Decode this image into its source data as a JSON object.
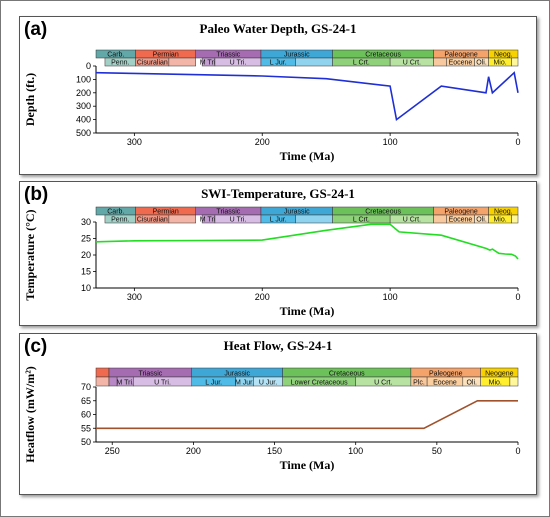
{
  "chart_data": [
    {
      "type": "line",
      "panel_label": "(a)",
      "title": "Paleo Water Depth, GS-24-1",
      "xlabel": "Time (Ma)",
      "ylabel": "Depth (ft.)",
      "xlim": [
        330,
        0
      ],
      "ylim": [
        0,
        500
      ],
      "y_inverted": true,
      "xticks": [
        "300",
        "200",
        "100",
        "0"
      ],
      "yticks": [
        "0",
        "100",
        "200",
        "300",
        "400",
        "500"
      ],
      "grid": false,
      "series": [
        {
          "color": "#1f2fd6",
          "x": [
            330,
            300,
            250,
            200,
            150,
            100,
            95,
            60,
            25,
            23,
            20,
            3,
            0
          ],
          "y": [
            50,
            55,
            65,
            75,
            95,
            150,
            400,
            150,
            200,
            80,
            200,
            50,
            200
          ]
        }
      ],
      "strat_top": [
        {
          "label": "Carb.",
          "from": 330,
          "to": 299,
          "color": "#62a8a8"
        },
        {
          "label": "Permian",
          "from": 299,
          "to": 252,
          "color": "#ef6a4f"
        },
        {
          "label": "Triassic",
          "from": 252,
          "to": 201,
          "color": "#a56cb2"
        },
        {
          "label": "Jurassic",
          "from": 201,
          "to": 145,
          "color": "#3fa7d6"
        },
        {
          "label": "Cretaceous",
          "from": 145,
          "to": 66,
          "color": "#6cc15a"
        },
        {
          "label": "Paleogene",
          "from": 66,
          "to": 23,
          "color": "#f4a36b"
        },
        {
          "label": "Neog.",
          "from": 23,
          "to": 0,
          "color": "#f7d200"
        }
      ],
      "strat_bottom": [
        {
          "label": "Penn.",
          "from": 323,
          "to": 299,
          "color": "#a2cfc6"
        },
        {
          "label": "Cisuralian",
          "from": 299,
          "to": 273,
          "color": "#ef9a88"
        },
        {
          "label": "",
          "from": 273,
          "to": 252,
          "color": "#f3b5a8"
        },
        {
          "label": "M Tri.",
          "from": 247,
          "to": 237,
          "color": "#c39fd1"
        },
        {
          "label": "U Tri.",
          "from": 237,
          "to": 201,
          "color": "#d7bde4"
        },
        {
          "label": "L Jur.",
          "from": 201,
          "to": 174,
          "color": "#4fbbe6"
        },
        {
          "label": "",
          "from": 174,
          "to": 145,
          "color": "#8fd3ef"
        },
        {
          "label": "L Crt.",
          "from": 145,
          "to": 100,
          "color": "#8fd07a"
        },
        {
          "label": "U Crt.",
          "from": 100,
          "to": 66,
          "color": "#b8e2a2"
        },
        {
          "label": "",
          "from": 66,
          "to": 56,
          "color": "#f8c89f"
        },
        {
          "label": "Eocene",
          "from": 56,
          "to": 34,
          "color": "#fbcf9f"
        },
        {
          "label": "Oli.",
          "from": 34,
          "to": 23,
          "color": "#fbe1bd"
        },
        {
          "label": "Mio.",
          "from": 23,
          "to": 5,
          "color": "#ffee30"
        },
        {
          "label": "",
          "from": 5,
          "to": 0,
          "color": "#fff79a"
        }
      ]
    },
    {
      "type": "line",
      "panel_label": "(b)",
      "title": "SWI-Temperature, GS-24-1",
      "xlabel": "Time (Ma)",
      "ylabel": "Temperature (°C)",
      "xlim": [
        330,
        0
      ],
      "ylim": [
        10,
        30
      ],
      "xticks": [
        "300",
        "200",
        "100",
        "0"
      ],
      "yticks": [
        "10",
        "15",
        "20",
        "25",
        "30"
      ],
      "grid": false,
      "series": [
        {
          "color": "#22dd22",
          "x": [
            330,
            300,
            250,
            200,
            150,
            115,
            100,
            93,
            60,
            25,
            22,
            20,
            15,
            10,
            5,
            2,
            0
          ],
          "y": [
            24,
            24.3,
            24.4,
            24.5,
            27.5,
            29.3,
            29.3,
            27,
            26,
            22,
            21.5,
            21.8,
            20.5,
            20.3,
            20.2,
            19.7,
            18.8
          ]
        }
      ],
      "strat_top": [
        {
          "label": "Carb.",
          "from": 330,
          "to": 299,
          "color": "#62a8a8"
        },
        {
          "label": "Permian",
          "from": 299,
          "to": 252,
          "color": "#ef6a4f"
        },
        {
          "label": "Triassic",
          "from": 252,
          "to": 201,
          "color": "#a56cb2"
        },
        {
          "label": "Jurassic",
          "from": 201,
          "to": 145,
          "color": "#3fa7d6"
        },
        {
          "label": "Cretaceous",
          "from": 145,
          "to": 66,
          "color": "#6cc15a"
        },
        {
          "label": "Paleogene",
          "from": 66,
          "to": 23,
          "color": "#f4a36b"
        },
        {
          "label": "Neog.",
          "from": 23,
          "to": 0,
          "color": "#f7d200"
        }
      ],
      "strat_bottom": [
        {
          "label": "Penn.",
          "from": 323,
          "to": 299,
          "color": "#a2cfc6"
        },
        {
          "label": "Cisuralian",
          "from": 299,
          "to": 273,
          "color": "#ef9a88"
        },
        {
          "label": "",
          "from": 273,
          "to": 252,
          "color": "#f3b5a8"
        },
        {
          "label": "M Tri.",
          "from": 247,
          "to": 237,
          "color": "#c39fd1"
        },
        {
          "label": "U Tri.",
          "from": 237,
          "to": 201,
          "color": "#d7bde4"
        },
        {
          "label": "L Jur.",
          "from": 201,
          "to": 174,
          "color": "#4fbbe6"
        },
        {
          "label": "",
          "from": 174,
          "to": 145,
          "color": "#8fd3ef"
        },
        {
          "label": "L Crt.",
          "from": 145,
          "to": 100,
          "color": "#8fd07a"
        },
        {
          "label": "U Crt.",
          "from": 100,
          "to": 66,
          "color": "#b8e2a2"
        },
        {
          "label": "",
          "from": 66,
          "to": 56,
          "color": "#f8c89f"
        },
        {
          "label": "Eocene",
          "from": 56,
          "to": 34,
          "color": "#fbcf9f"
        },
        {
          "label": "Oli.",
          "from": 34,
          "to": 23,
          "color": "#fbe1bd"
        },
        {
          "label": "Mio.",
          "from": 23,
          "to": 5,
          "color": "#ffee30"
        },
        {
          "label": "",
          "from": 5,
          "to": 0,
          "color": "#fff79a"
        }
      ]
    },
    {
      "type": "line",
      "panel_label": "(c)",
      "title": "Heat Flow, GS-24-1",
      "xlabel": "Time (Ma)",
      "ylabel": "Heatflow (mW/m²)",
      "xlim": [
        260,
        0
      ],
      "ylim": [
        50,
        70
      ],
      "xticks": [
        "250",
        "200",
        "150",
        "100",
        "50",
        "0"
      ],
      "yticks": [
        "50",
        "55",
        "60",
        "65",
        "70"
      ],
      "grid": false,
      "series": [
        {
          "color": "#a0522d",
          "x": [
            260,
            200,
            150,
            100,
            58,
            25,
            0
          ],
          "y": [
            55,
            55,
            55,
            55,
            55,
            65,
            65
          ]
        }
      ],
      "strat_top": [
        {
          "label": "",
          "from": 260,
          "to": 252,
          "color": "#ef6a4f"
        },
        {
          "label": "Triassic",
          "from": 252,
          "to": 201,
          "color": "#a56cb2"
        },
        {
          "label": "Jurassic",
          "from": 201,
          "to": 145,
          "color": "#3fa7d6"
        },
        {
          "label": "Cretaceous",
          "from": 145,
          "to": 66,
          "color": "#6cc15a"
        },
        {
          "label": "Paleogene",
          "from": 66,
          "to": 23,
          "color": "#f4a36b"
        },
        {
          "label": "Neogene",
          "from": 23,
          "to": 0,
          "color": "#f7d200"
        }
      ],
      "strat_bottom": [
        {
          "label": "",
          "from": 260,
          "to": 252,
          "color": "#f3b5a8"
        },
        {
          "label": "",
          "from": 252,
          "to": 247,
          "color": "#b887c6"
        },
        {
          "label": "M Tri.",
          "from": 247,
          "to": 237,
          "color": "#c39fd1"
        },
        {
          "label": "U Tri.",
          "from": 237,
          "to": 201,
          "color": "#d7bde4"
        },
        {
          "label": "L Jur.",
          "from": 201,
          "to": 174,
          "color": "#4fbbe6"
        },
        {
          "label": "M Jur.",
          "from": 174,
          "to": 163,
          "color": "#8fd3ef"
        },
        {
          "label": "U Jur.",
          "from": 163,
          "to": 145,
          "color": "#b5e3f5"
        },
        {
          "label": "Lower Cretaceous",
          "from": 145,
          "to": 100,
          "color": "#8fd07a"
        },
        {
          "label": "U Crt.",
          "from": 100,
          "to": 66,
          "color": "#b8e2a2"
        },
        {
          "label": "Plc.",
          "from": 66,
          "to": 56,
          "color": "#f8c89f"
        },
        {
          "label": "Eocene",
          "from": 56,
          "to": 34,
          "color": "#fbcf9f"
        },
        {
          "label": "Oli.",
          "from": 34,
          "to": 23,
          "color": "#fbe1bd"
        },
        {
          "label": "Mio.",
          "from": 23,
          "to": 5,
          "color": "#ffee30"
        },
        {
          "label": "",
          "from": 5,
          "to": 0,
          "color": "#fff79a"
        }
      ]
    }
  ]
}
